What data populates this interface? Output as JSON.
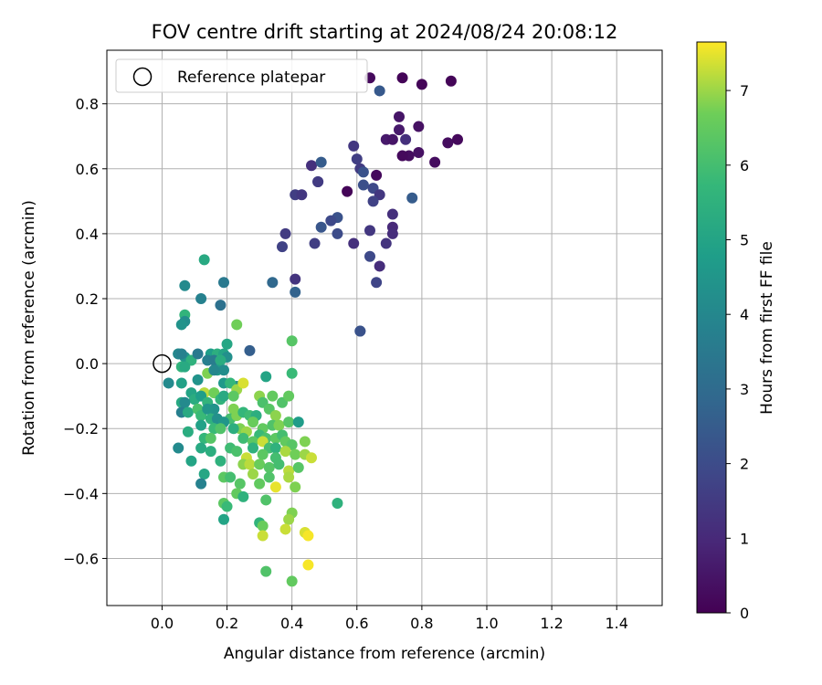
{
  "chart_data": {
    "type": "scatter",
    "title": "FOV centre drift starting at 2024/08/24 20:08:12",
    "xlabel": "Angular distance from reference (arcmin)",
    "ylabel": "Rotation from reference (arcmin)",
    "xlim": [
      -0.17,
      1.54
    ],
    "ylim": [
      -0.745,
      0.965
    ],
    "xticks": [
      "0.0",
      "0.2",
      "0.4",
      "0.6",
      "0.8",
      "1.0",
      "1.2",
      "1.4"
    ],
    "xtick_values": [
      0.0,
      0.2,
      0.4,
      0.6,
      0.8,
      1.0,
      1.2,
      1.4
    ],
    "yticks": [
      "−0.6",
      "−0.4",
      "−0.2",
      "0.0",
      "0.2",
      "0.4",
      "0.6",
      "0.8"
    ],
    "ytick_values": [
      -0.6,
      -0.4,
      -0.2,
      0.0,
      0.2,
      0.4,
      0.6,
      0.8
    ],
    "grid": true,
    "legend": {
      "position": "top-left",
      "entries": [
        {
          "label": "Reference platepar",
          "marker": "open-circle"
        }
      ]
    },
    "colorbar": {
      "label": "Hours from first FF file",
      "colormap": "viridis",
      "range": [
        0,
        7.65
      ],
      "ticks": [
        "0",
        "1",
        "2",
        "3",
        "4",
        "5",
        "6",
        "7"
      ],
      "tick_values": [
        0,
        1,
        2,
        3,
        4,
        5,
        6,
        7
      ]
    },
    "reference_point": {
      "x": 0.0,
      "y": 0.0
    },
    "points": [
      [
        0.74,
        0.88,
        0.1
      ],
      [
        0.64,
        0.88,
        0.2
      ],
      [
        0.8,
        0.86,
        0.1
      ],
      [
        0.89,
        0.87,
        0.1
      ],
      [
        0.67,
        0.84,
        2.4
      ],
      [
        0.73,
        0.76,
        0.5
      ],
      [
        0.79,
        0.73,
        0.4
      ],
      [
        0.73,
        0.72,
        0.6
      ],
      [
        0.69,
        0.69,
        0.6
      ],
      [
        0.71,
        0.69,
        0.5
      ],
      [
        0.75,
        0.69,
        1.2
      ],
      [
        0.88,
        0.68,
        0.3
      ],
      [
        0.91,
        0.69,
        0.2
      ],
      [
        0.59,
        0.67,
        1.4
      ],
      [
        0.76,
        0.64,
        0.3
      ],
      [
        0.79,
        0.65,
        0.4
      ],
      [
        0.74,
        0.64,
        0.2
      ],
      [
        0.84,
        0.62,
        0.3
      ],
      [
        0.46,
        0.61,
        1.2
      ],
      [
        0.49,
        0.62,
        2.5
      ],
      [
        0.6,
        0.63,
        1.6
      ],
      [
        0.61,
        0.6,
        1.5
      ],
      [
        0.62,
        0.59,
        2.2
      ],
      [
        0.66,
        0.58,
        0.2
      ],
      [
        0.48,
        0.56,
        1.8
      ],
      [
        0.48,
        0.56,
        1.5
      ],
      [
        0.62,
        0.55,
        2.1
      ],
      [
        0.65,
        0.54,
        1.9
      ],
      [
        0.67,
        0.52,
        1.4
      ],
      [
        0.57,
        0.53,
        0.1
      ],
      [
        0.41,
        0.52,
        1.6
      ],
      [
        0.43,
        0.52,
        1.4
      ],
      [
        0.77,
        0.51,
        2.5
      ],
      [
        0.65,
        0.5,
        1.7
      ],
      [
        0.71,
        0.46,
        1.2
      ],
      [
        0.54,
        0.45,
        2.2
      ],
      [
        0.52,
        0.44,
        1.9
      ],
      [
        0.71,
        0.42,
        1.0
      ],
      [
        0.71,
        0.4,
        1.1
      ],
      [
        0.49,
        0.42,
        2.3
      ],
      [
        0.54,
        0.4,
        2.0
      ],
      [
        0.64,
        0.41,
        1.4
      ],
      [
        0.38,
        0.4,
        1.5
      ],
      [
        0.47,
        0.37,
        1.6
      ],
      [
        0.59,
        0.37,
        1.2
      ],
      [
        0.69,
        0.37,
        1.3
      ],
      [
        0.37,
        0.36,
        1.7
      ],
      [
        0.64,
        0.33,
        1.9
      ],
      [
        0.67,
        0.3,
        1.1
      ],
      [
        0.41,
        0.26,
        1.3
      ],
      [
        0.66,
        0.25,
        1.8
      ],
      [
        0.34,
        0.25,
        2.9
      ],
      [
        0.41,
        0.22,
        2.7
      ],
      [
        0.61,
        0.1,
        2.4
      ],
      [
        0.13,
        0.32,
        5.2
      ],
      [
        0.19,
        0.25,
        3.5
      ],
      [
        0.07,
        0.24,
        4.1
      ],
      [
        0.12,
        0.2,
        3.8
      ],
      [
        0.18,
        0.18,
        3.2
      ],
      [
        0.07,
        0.15,
        5.6
      ],
      [
        0.07,
        0.13,
        4.2
      ],
      [
        0.06,
        0.12,
        4.4
      ],
      [
        0.23,
        0.12,
        6.7
      ],
      [
        0.61,
        0.1,
        2.2
      ],
      [
        0.2,
        0.06,
        5.1
      ],
      [
        0.27,
        0.04,
        2.6
      ],
      [
        0.4,
        0.07,
        6.3
      ],
      [
        0.05,
        0.03,
        5.1
      ],
      [
        0.07,
        0.02,
        4.5
      ],
      [
        0.05,
        0.03,
        4.0
      ],
      [
        0.06,
        0.03,
        3.8
      ],
      [
        0.09,
        0.01,
        5.5
      ],
      [
        0.11,
        0.03,
        3.5
      ],
      [
        0.15,
        0.03,
        4.8
      ],
      [
        0.17,
        0.03,
        5.4
      ],
      [
        0.19,
        0.03,
        5.0
      ],
      [
        0.2,
        0.02,
        4.3
      ],
      [
        0.14,
        0.01,
        3.7
      ],
      [
        0.16,
        0.01,
        3.6
      ],
      [
        0.18,
        0.01,
        5.3
      ],
      [
        0.06,
        -0.01,
        5.6
      ],
      [
        0.07,
        -0.01,
        5.2
      ],
      [
        0.14,
        -0.03,
        6.8
      ],
      [
        0.17,
        -0.02,
        4.7
      ],
      [
        0.19,
        -0.02,
        4.2
      ],
      [
        0.16,
        -0.02,
        4.0
      ],
      [
        0.32,
        -0.04,
        5.0
      ],
      [
        0.4,
        -0.03,
        5.8
      ],
      [
        0.02,
        -0.06,
        4.1
      ],
      [
        0.06,
        -0.06,
        4.9
      ],
      [
        0.11,
        -0.05,
        4.4
      ],
      [
        0.19,
        -0.06,
        4.6
      ],
      [
        0.23,
        -0.07,
        4.3
      ],
      [
        0.21,
        -0.06,
        5.7
      ],
      [
        0.23,
        -0.08,
        7.0
      ],
      [
        0.25,
        -0.06,
        7.4
      ],
      [
        0.13,
        -0.09,
        7.2
      ],
      [
        0.16,
        -0.09,
        6.7
      ],
      [
        0.18,
        -0.11,
        5.6
      ],
      [
        0.19,
        -0.1,
        5.2
      ],
      [
        0.09,
        -0.09,
        5.0
      ],
      [
        0.1,
        -0.11,
        5.3
      ],
      [
        0.12,
        -0.1,
        4.8
      ],
      [
        0.06,
        -0.12,
        5.2
      ],
      [
        0.07,
        -0.12,
        4.1
      ],
      [
        0.14,
        -0.12,
        5.6
      ],
      [
        0.16,
        -0.14,
        4.4
      ],
      [
        0.22,
        -0.1,
        6.4
      ],
      [
        0.22,
        -0.14,
        6.8
      ],
      [
        0.3,
        -0.1,
        6.9
      ],
      [
        0.34,
        -0.1,
        6.5
      ],
      [
        0.37,
        -0.12,
        6.2
      ],
      [
        0.39,
        -0.1,
        6.5
      ],
      [
        0.31,
        -0.12,
        6.1
      ],
      [
        0.33,
        -0.14,
        6.3
      ],
      [
        0.35,
        -0.16,
        6.9
      ],
      [
        0.21,
        -0.17,
        6.0
      ],
      [
        0.23,
        -0.16,
        6.8
      ],
      [
        0.25,
        -0.15,
        5.7
      ],
      [
        0.27,
        -0.16,
        5.9
      ],
      [
        0.29,
        -0.16,
        5.4
      ],
      [
        0.06,
        -0.15,
        3.7
      ],
      [
        0.08,
        -0.15,
        5.2
      ],
      [
        0.11,
        -0.14,
        6.1
      ],
      [
        0.12,
        -0.16,
        5.8
      ],
      [
        0.14,
        -0.14,
        4.5
      ],
      [
        0.15,
        -0.17,
        5.5
      ],
      [
        0.17,
        -0.17,
        4.3
      ],
      [
        0.19,
        -0.18,
        4.5
      ],
      [
        0.28,
        -0.18,
        6.6
      ],
      [
        0.31,
        -0.2,
        6.5
      ],
      [
        0.34,
        -0.19,
        6.2
      ],
      [
        0.36,
        -0.19,
        6.8
      ],
      [
        0.39,
        -0.18,
        6.3
      ],
      [
        0.42,
        -0.18,
        4.7
      ],
      [
        0.24,
        -0.2,
        6.8
      ],
      [
        0.26,
        -0.21,
        7.0
      ],
      [
        0.3,
        -0.22,
        5.8
      ],
      [
        0.32,
        -0.23,
        6.1
      ],
      [
        0.35,
        -0.23,
        6.4
      ],
      [
        0.37,
        -0.22,
        6.0
      ],
      [
        0.08,
        -0.21,
        5.3
      ],
      [
        0.12,
        -0.19,
        4.9
      ],
      [
        0.16,
        -0.2,
        5.8
      ],
      [
        0.18,
        -0.2,
        6.2
      ],
      [
        0.22,
        -0.2,
        5.4
      ],
      [
        0.25,
        -0.23,
        5.9
      ],
      [
        0.28,
        -0.24,
        6.4
      ],
      [
        0.31,
        -0.24,
        7.3
      ],
      [
        0.33,
        -0.26,
        6.0
      ],
      [
        0.35,
        -0.26,
        5.5
      ],
      [
        0.38,
        -0.24,
        6.5
      ],
      [
        0.4,
        -0.25,
        6.3
      ],
      [
        0.44,
        -0.24,
        6.8
      ],
      [
        0.13,
        -0.23,
        5.7
      ],
      [
        0.15,
        -0.23,
        6.3
      ],
      [
        0.05,
        -0.26,
        4.1
      ],
      [
        0.12,
        -0.26,
        5.2
      ],
      [
        0.15,
        -0.27,
        5.4
      ],
      [
        0.21,
        -0.26,
        5.9
      ],
      [
        0.23,
        -0.27,
        6.1
      ],
      [
        0.26,
        -0.29,
        7.3
      ],
      [
        0.28,
        -0.26,
        5.5
      ],
      [
        0.31,
        -0.28,
        6.4
      ],
      [
        0.35,
        -0.29,
        6.0
      ],
      [
        0.38,
        -0.27,
        7.1
      ],
      [
        0.41,
        -0.28,
        6.7
      ],
      [
        0.44,
        -0.28,
        7.0
      ],
      [
        0.46,
        -0.29,
        7.3
      ],
      [
        0.09,
        -0.3,
        5.0
      ],
      [
        0.18,
        -0.3,
        5.5
      ],
      [
        0.25,
        -0.31,
        6.9
      ],
      [
        0.27,
        -0.31,
        7.2
      ],
      [
        0.3,
        -0.31,
        6.6
      ],
      [
        0.33,
        -0.32,
        6.3
      ],
      [
        0.36,
        -0.31,
        6.0
      ],
      [
        0.39,
        -0.33,
        7.2
      ],
      [
        0.42,
        -0.32,
        6.3
      ],
      [
        0.13,
        -0.34,
        5.1
      ],
      [
        0.19,
        -0.35,
        6.4
      ],
      [
        0.21,
        -0.35,
        6.0
      ],
      [
        0.28,
        -0.34,
        7.0
      ],
      [
        0.33,
        -0.35,
        6.2
      ],
      [
        0.39,
        -0.35,
        7.1
      ],
      [
        0.12,
        -0.37,
        3.8
      ],
      [
        0.24,
        -0.37,
        6.3
      ],
      [
        0.3,
        -0.37,
        6.5
      ],
      [
        0.35,
        -0.38,
        7.5
      ],
      [
        0.41,
        -0.38,
        6.8
      ],
      [
        0.23,
        -0.4,
        6.5
      ],
      [
        0.25,
        -0.41,
        5.5
      ],
      [
        0.32,
        -0.42,
        6.2
      ],
      [
        0.19,
        -0.43,
        6.4
      ],
      [
        0.2,
        -0.44,
        5.8
      ],
      [
        0.54,
        -0.43,
        5.5
      ],
      [
        0.4,
        -0.46,
        6.8
      ],
      [
        0.39,
        -0.48,
        7.0
      ],
      [
        0.19,
        -0.48,
        5.0
      ],
      [
        0.3,
        -0.49,
        5.6
      ],
      [
        0.31,
        -0.5,
        6.6
      ],
      [
        0.38,
        -0.51,
        7.3
      ],
      [
        0.44,
        -0.52,
        7.4
      ],
      [
        0.45,
        -0.53,
        7.6
      ],
      [
        0.31,
        -0.53,
        7.3
      ],
      [
        0.45,
        -0.62,
        7.6
      ],
      [
        0.32,
        -0.64,
        6.2
      ],
      [
        0.4,
        -0.67,
        6.5
      ]
    ]
  }
}
